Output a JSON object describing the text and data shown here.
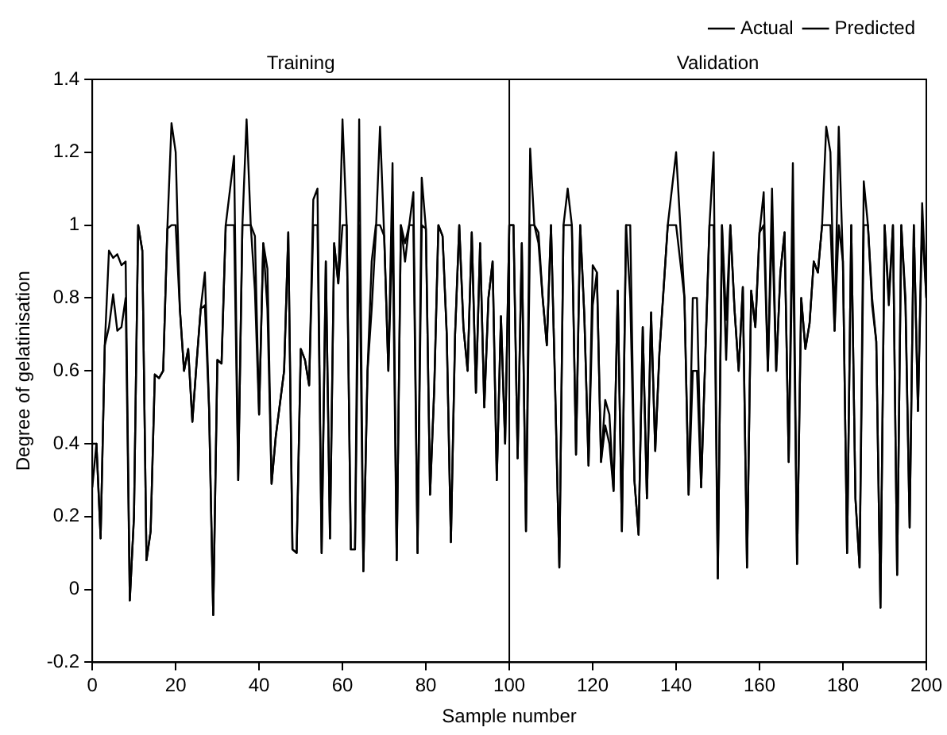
{
  "chart_data": {
    "type": "line",
    "xlabel": "Sample number",
    "ylabel": "Degree of gelatinisation",
    "x": [
      0,
      1,
      2,
      3,
      4,
      5,
      6,
      7,
      8,
      9,
      10,
      11,
      12,
      13,
      14,
      15,
      16,
      17,
      18,
      19,
      20,
      21,
      22,
      23,
      24,
      25,
      26,
      27,
      28,
      29,
      30,
      31,
      32,
      34,
      35,
      36,
      37,
      38,
      39,
      40,
      41,
      42,
      43,
      44,
      46,
      47,
      48,
      49,
      50,
      51,
      52,
      53,
      54,
      55,
      56,
      57,
      58,
      59,
      60,
      61,
      62,
      63,
      64,
      65,
      66,
      67,
      68,
      69,
      70,
      71,
      72,
      73,
      74,
      75,
      76,
      77,
      78,
      79,
      80,
      81,
      82,
      83,
      84,
      85,
      86,
      87,
      88,
      89,
      90,
      91,
      92,
      93,
      94,
      95,
      96,
      97,
      98,
      99,
      100,
      101,
      102,
      103,
      104,
      105,
      106,
      107,
      108,
      109,
      110,
      111,
      112,
      113,
      114,
      115,
      116,
      117,
      118,
      119,
      120,
      121,
      122,
      123,
      124,
      125,
      126,
      127,
      128,
      129,
      130,
      131,
      132,
      133,
      134,
      135,
      136,
      138,
      140,
      142,
      143,
      144,
      145,
      146,
      148,
      149,
      150,
      151,
      152,
      153,
      154,
      155,
      156,
      157,
      158,
      159,
      160,
      161,
      162,
      163,
      164,
      165,
      166,
      167,
      168,
      169,
      170,
      171,
      172,
      173,
      174,
      175,
      176,
      177,
      178,
      179,
      180,
      181,
      182,
      183,
      184,
      185,
      186,
      187,
      188,
      189,
      190,
      191,
      192,
      193,
      194,
      195,
      196,
      197,
      198,
      199,
      200
    ],
    "series": [
      {
        "name": "Actual",
        "color": "#000000",
        "values": [
          0.28,
          0.4,
          0.14,
          0.67,
          0.93,
          0.91,
          0.92,
          0.89,
          0.9,
          -0.03,
          0.2,
          1.0,
          0.93,
          0.08,
          0.16,
          0.59,
          0.58,
          0.6,
          0.99,
          1.28,
          1.2,
          0.77,
          0.6,
          0.66,
          0.46,
          0.62,
          0.77,
          0.87,
          0.5,
          -0.07,
          0.63,
          0.62,
          1.0,
          1.19,
          0.3,
          1.0,
          1.29,
          1.0,
          0.82,
          0.48,
          0.95,
          0.88,
          0.29,
          0.42,
          0.6,
          0.98,
          0.11,
          0.1,
          0.66,
          0.63,
          0.56,
          1.07,
          1.1,
          0.1,
          0.9,
          0.14,
          0.95,
          0.84,
          1.29,
          1.0,
          0.11,
          0.11,
          1.29,
          0.05,
          0.6,
          0.77,
          0.98,
          1.27,
          0.97,
          0.6,
          1.17,
          0.08,
          1.0,
          0.9,
          1.0,
          1.09,
          0.1,
          1.13,
          0.99,
          0.26,
          0.55,
          1.0,
          0.97,
          0.7,
          0.13,
          0.7,
          1.0,
          0.72,
          0.6,
          0.98,
          0.54,
          0.95,
          0.5,
          0.8,
          0.9,
          0.3,
          0.75,
          0.4,
          1.0,
          1.0,
          0.36,
          0.95,
          0.16,
          1.21,
          1.0,
          0.98,
          0.8,
          0.67,
          1.0,
          0.55,
          0.06,
          1.0,
          1.1,
          1.0,
          0.37,
          1.0,
          0.75,
          0.34,
          0.89,
          0.87,
          0.35,
          0.52,
          0.48,
          0.27,
          0.82,
          0.16,
          1.0,
          1.0,
          0.3,
          0.15,
          0.72,
          0.25,
          0.76,
          0.38,
          0.65,
          1.0,
          1.2,
          0.8,
          0.26,
          0.8,
          0.8,
          0.28,
          1.0,
          1.2,
          0.03,
          1.0,
          0.74,
          1.0,
          0.77,
          0.6,
          0.83,
          0.06,
          0.82,
          0.72,
          0.98,
          1.09,
          0.6,
          1.1,
          0.6,
          0.87,
          0.98,
          0.35,
          1.17,
          0.07,
          0.8,
          0.66,
          0.73,
          0.9,
          0.87,
          1.0,
          1.27,
          1.2,
          0.71,
          1.27,
          0.9,
          0.1,
          1.0,
          0.25,
          0.06,
          1.12,
          1.0,
          0.78,
          0.68,
          -0.05,
          1.0,
          0.8,
          1.0,
          0.04,
          1.0,
          0.8,
          0.17,
          1.0,
          0.49,
          1.06,
          0.8
        ]
      },
      {
        "name": "Predicted",
        "color": "#000000",
        "values": [
          0.4,
          0.4,
          0.14,
          0.67,
          0.72,
          0.81,
          0.71,
          0.72,
          0.8,
          -0.03,
          0.2,
          1.0,
          0.93,
          0.08,
          0.16,
          0.59,
          0.58,
          0.6,
          0.99,
          1.0,
          1.0,
          0.77,
          0.6,
          0.66,
          0.46,
          0.62,
          0.77,
          0.78,
          0.5,
          -0.07,
          0.63,
          0.62,
          1.0,
          1.0,
          0.3,
          1.0,
          1.0,
          1.0,
          0.97,
          0.48,
          0.95,
          0.77,
          0.29,
          0.42,
          0.6,
          0.98,
          0.11,
          0.1,
          0.66,
          0.63,
          0.56,
          1.0,
          1.0,
          0.1,
          0.9,
          0.14,
          0.95,
          0.84,
          1.0,
          1.0,
          0.11,
          0.11,
          1.0,
          0.05,
          0.6,
          0.9,
          1.0,
          1.0,
          0.97,
          0.6,
          1.0,
          0.08,
          1.0,
          0.95,
          1.0,
          1.0,
          0.1,
          1.0,
          0.99,
          0.26,
          0.55,
          1.0,
          0.97,
          0.7,
          0.13,
          0.7,
          1.0,
          0.72,
          0.6,
          0.98,
          0.54,
          0.95,
          0.5,
          0.8,
          0.9,
          0.3,
          0.75,
          0.4,
          1.0,
          1.0,
          0.36,
          0.95,
          0.16,
          1.0,
          1.0,
          0.95,
          0.8,
          0.67,
          1.0,
          0.55,
          0.06,
          1.0,
          1.0,
          1.0,
          0.37,
          1.0,
          0.75,
          0.34,
          0.78,
          0.87,
          0.35,
          0.45,
          0.4,
          0.27,
          0.82,
          0.16,
          1.0,
          0.8,
          0.3,
          0.15,
          0.72,
          0.25,
          0.76,
          0.38,
          0.65,
          1.0,
          1.0,
          0.8,
          0.26,
          0.6,
          0.6,
          0.28,
          1.0,
          1.0,
          0.03,
          1.0,
          0.63,
          1.0,
          0.77,
          0.6,
          0.83,
          0.06,
          0.82,
          0.72,
          0.98,
          1.0,
          0.6,
          1.0,
          0.6,
          0.87,
          0.98,
          0.35,
          1.0,
          0.07,
          0.8,
          0.66,
          0.73,
          0.9,
          0.87,
          1.0,
          1.0,
          1.0,
          0.71,
          1.0,
          0.9,
          0.1,
          1.0,
          0.25,
          0.06,
          1.0,
          1.0,
          0.8,
          0.68,
          -0.05,
          1.0,
          0.78,
          1.0,
          0.04,
          1.0,
          0.78,
          0.17,
          1.0,
          0.49,
          1.0,
          0.8
        ]
      }
    ],
    "xlim": [
      0,
      200
    ],
    "xticks": [
      0,
      20,
      40,
      60,
      80,
      100,
      120,
      140,
      160,
      180,
      200
    ],
    "ylim": [
      -0.2,
      1.4
    ],
    "yticks": [
      -0.2,
      0,
      0.2,
      0.4,
      0.6,
      0.8,
      1,
      1.2,
      1.4
    ],
    "ref_lines": [
      {
        "axis": "x",
        "value": 100,
        "color": "#000000"
      }
    ],
    "annotations": [
      "Training",
      "Validation"
    ],
    "legend": "top right"
  }
}
